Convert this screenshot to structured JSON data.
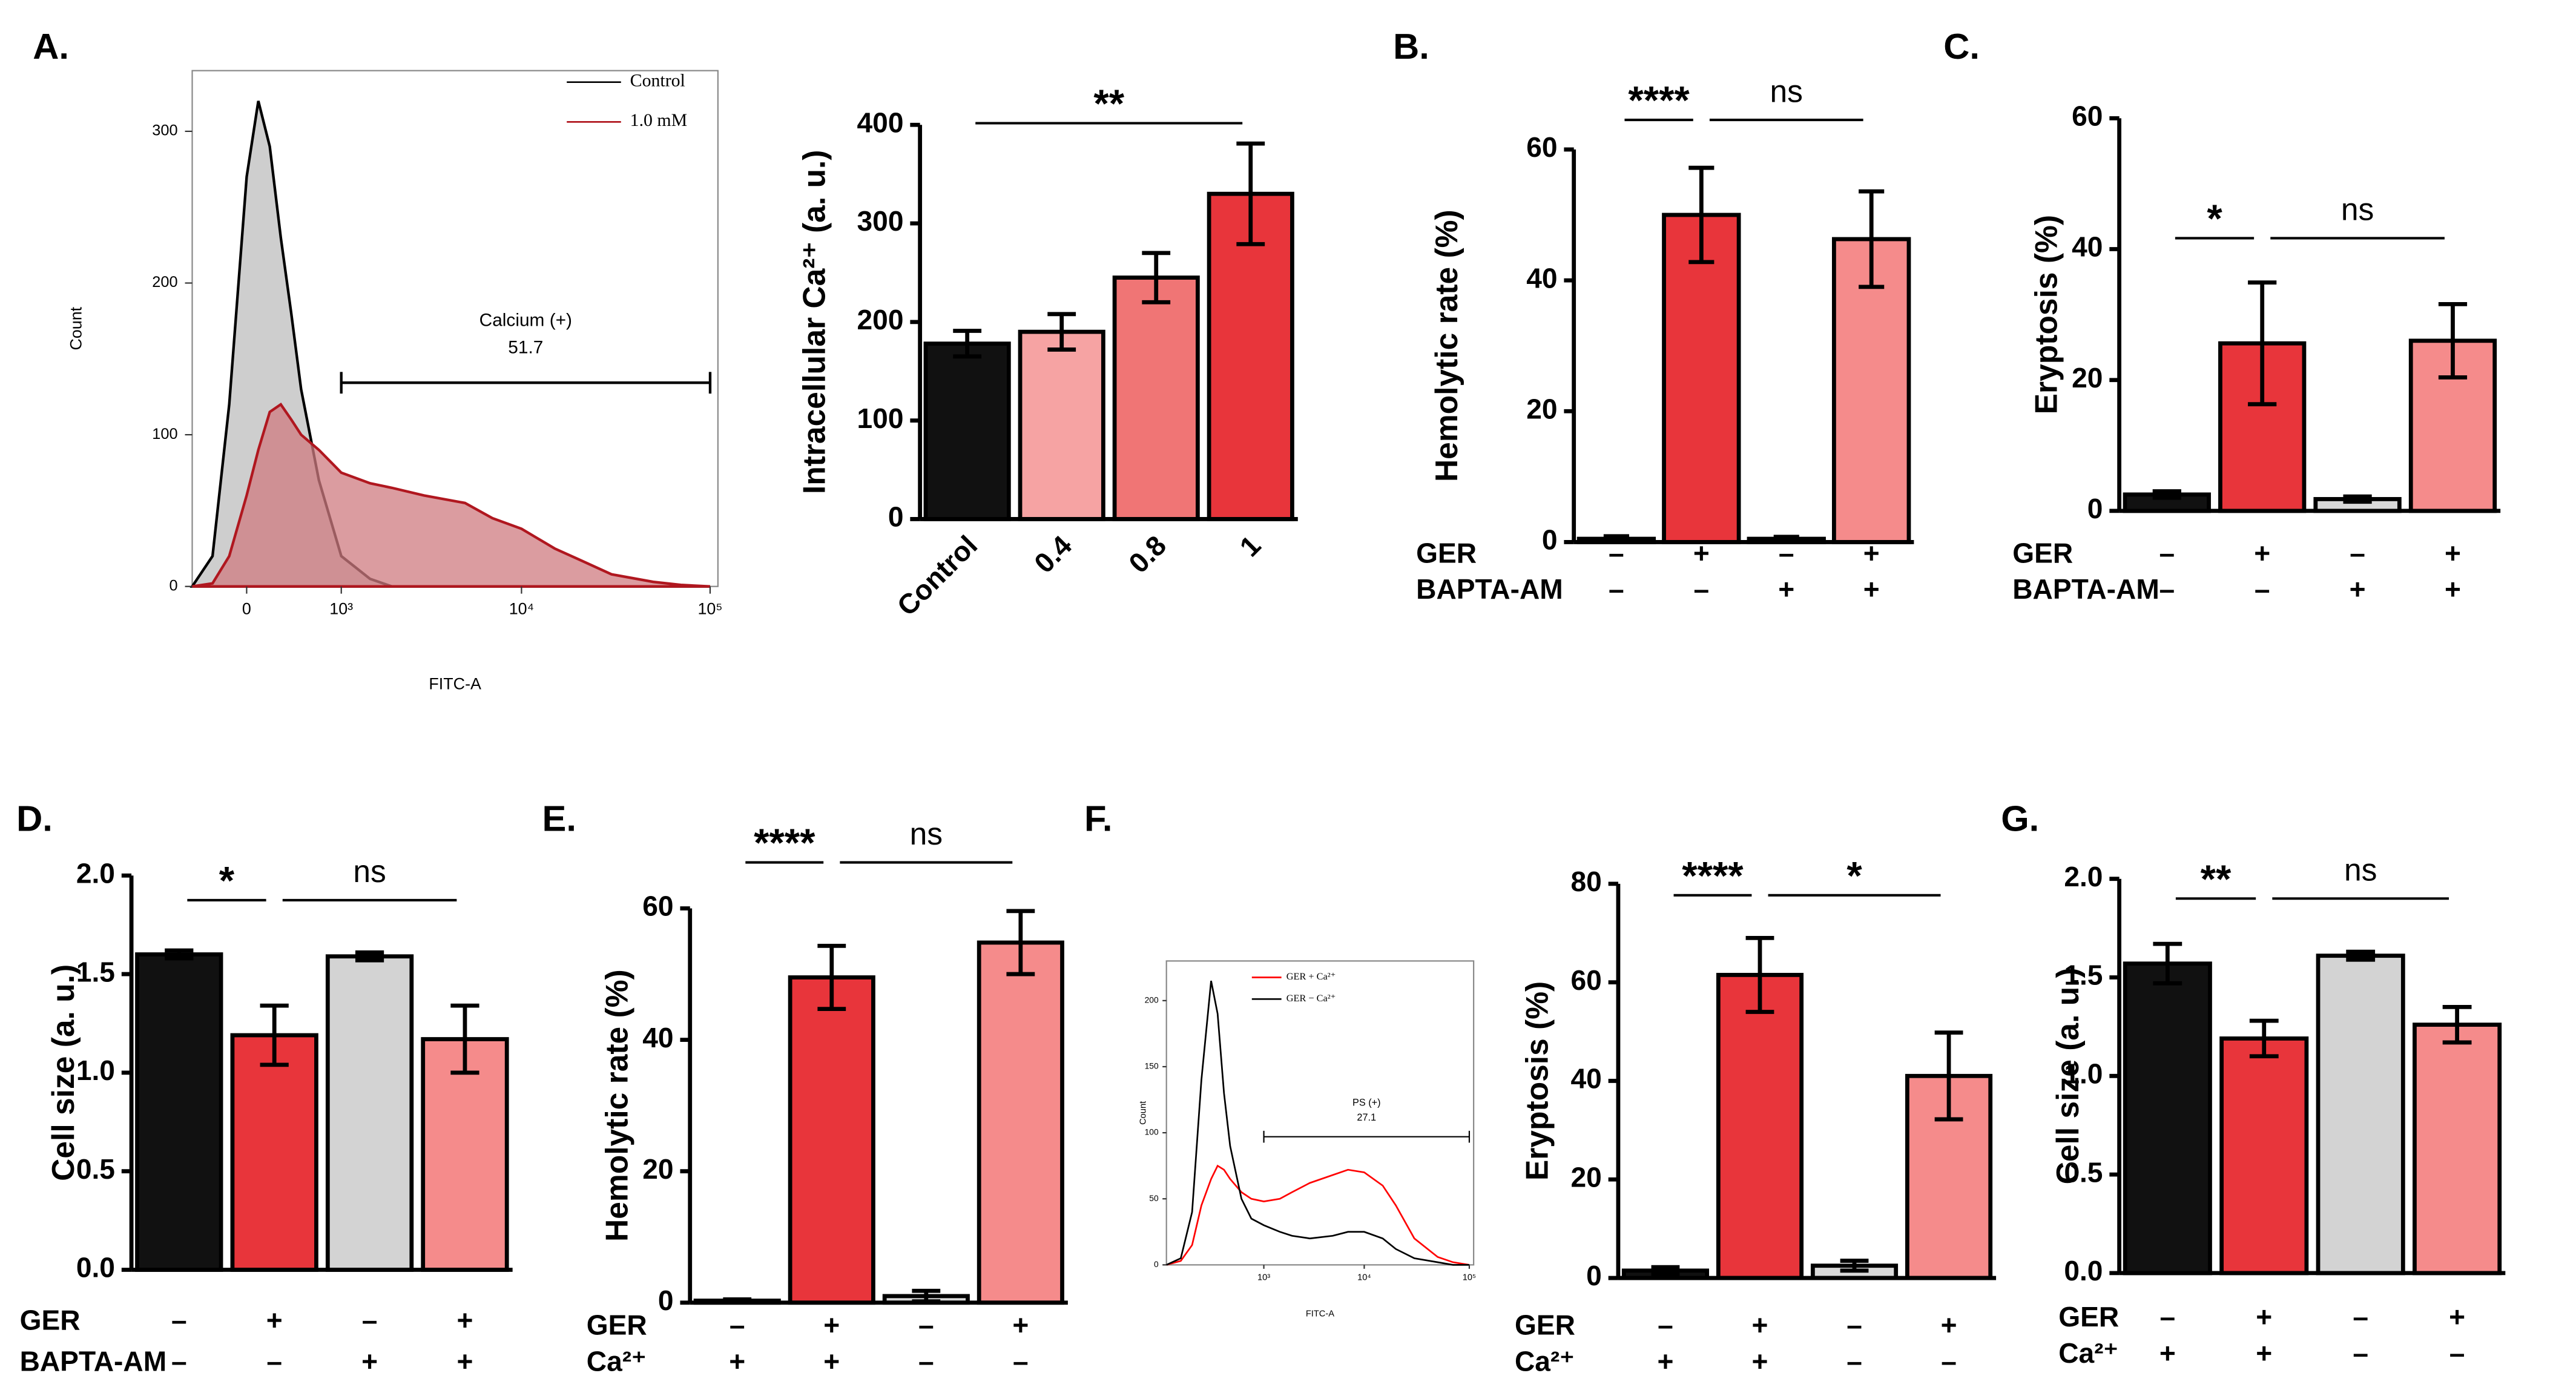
{
  "chart_data": [
    {
      "type": "flow",
      "panel": "A.",
      "xlabel": "FITC-A",
      "ylabel": "Count",
      "xscale": "logicle",
      "x": [
        -500,
        -300,
        -150,
        0,
        100,
        200,
        300,
        400,
        500,
        700,
        1000,
        1500,
        2000,
        3000,
        5000,
        7000,
        10000,
        15000,
        20000,
        30000,
        50000,
        70000,
        100000
      ],
      "series": [
        {
          "name": "Control",
          "color": "#000000",
          "fill": "#bdbdbd",
          "values": [
            0,
            20,
            120,
            270,
            320,
            290,
            230,
            180,
            130,
            70,
            20,
            5,
            0,
            0,
            0,
            0,
            0,
            0,
            0,
            0,
            0,
            0,
            0
          ]
        },
        {
          "name": "1.0 mM",
          "color": "#b0171f",
          "fill": "#cf7b80",
          "values": [
            0,
            2,
            20,
            60,
            90,
            115,
            120,
            110,
            100,
            90,
            75,
            68,
            65,
            60,
            55,
            45,
            38,
            25,
            18,
            8,
            3,
            1,
            0
          ]
        }
      ],
      "xlim": [
        -500,
        110000
      ],
      "xticks": [
        0,
        {
          "value": 1000,
          "label": "10³"
        },
        {
          "value": 10000,
          "label": "10⁴"
        },
        {
          "value": 100000,
          "label": "10⁵"
        }
      ],
      "ylim": [
        0,
        340
      ],
      "yticks": [
        0,
        100,
        200,
        300
      ],
      "gate": {
        "label": "Calcium (+)",
        "percent": 51.7,
        "range": [
          1000,
          100000
        ]
      }
    },
    {
      "type": "bar",
      "ylabel": "Intracellular Ca²⁺ (a. u.)",
      "categories": [
        "Control",
        "0.4",
        "0.8",
        "1"
      ],
      "values": [
        178,
        190,
        245,
        330
      ],
      "errors": [
        13,
        18,
        25,
        51
      ],
      "colors": [
        "#111111",
        "#f6a3a3",
        "#f07575",
        "#e8353b"
      ],
      "ylim": [
        0,
        400
      ],
      "yticks": [
        0,
        100,
        200,
        300,
        400
      ],
      "significance": [
        {
          "label": "**",
          "from": 0,
          "to": 3
        }
      ]
    },
    {
      "type": "bar",
      "panel": "B.",
      "ylabel": "Hemolytic rate (%)",
      "values": [
        0.5,
        50,
        0.5,
        46.3
      ],
      "errors": [
        0.4,
        7.2,
        0.3,
        7.3
      ],
      "colors": [
        "#111111",
        "#e8353b",
        "#d9d9d9",
        "#f58b8b"
      ],
      "ylim": [
        0,
        60
      ],
      "yticks": [
        0,
        20,
        40,
        60
      ],
      "rows": [
        {
          "name": "GER",
          "signs": [
            "–",
            "+",
            "–",
            "+"
          ]
        },
        {
          "name": "BAPTA-AM",
          "signs": [
            "–",
            "–",
            "+",
            "+"
          ]
        }
      ],
      "significance": [
        {
          "label": "****",
          "from": 0,
          "to": 1
        },
        {
          "label": "ns",
          "from": 1,
          "to": 3
        }
      ]
    },
    {
      "type": "bar",
      "panel": "C.",
      "ylabel": "Eryptosis (%)",
      "values": [
        2.5,
        25.6,
        1.8,
        26
      ],
      "errors": [
        0.5,
        9.3,
        0.4,
        5.6
      ],
      "colors": [
        "#111111",
        "#e8353b",
        "#d9d9d9",
        "#f58b8b"
      ],
      "ylim": [
        0,
        60
      ],
      "yticks": [
        0,
        20,
        40,
        60
      ],
      "rows": [
        {
          "name": "GER",
          "signs": [
            "–",
            "+",
            "–",
            "+"
          ]
        },
        {
          "name": "BAPTA-AM",
          "signs": [
            "–",
            "–",
            "+",
            "+"
          ]
        }
      ],
      "significance": [
        {
          "label": "*",
          "from": 0,
          "to": 1
        },
        {
          "label": "ns",
          "from": 1,
          "to": 3
        }
      ]
    },
    {
      "type": "bar",
      "panel": "D.",
      "ylabel": "Cell size (a. u.)",
      "values": [
        1.6,
        1.19,
        1.59,
        1.17
      ],
      "errors": [
        0.02,
        0.15,
        0.02,
        0.17
      ],
      "colors": [
        "#111111",
        "#e8353b",
        "#d3d3d3",
        "#f58b8b"
      ],
      "ylim": [
        0,
        2
      ],
      "yticks": [
        {
          "value": 0,
          "label": "0.0"
        },
        {
          "value": 0.5,
          "label": "0.5"
        },
        {
          "value": 1,
          "label": "1.0"
        },
        {
          "value": 1.5,
          "label": "1.5"
        },
        {
          "value": 2,
          "label": "2.0"
        }
      ],
      "rows": [
        {
          "name": "GER",
          "signs": [
            "–",
            "+",
            "–",
            "+"
          ]
        },
        {
          "name": "BAPTA-AM",
          "signs": [
            "–",
            "–",
            "+",
            "+"
          ]
        }
      ],
      "significance": [
        {
          "label": "*",
          "from": 0,
          "to": 1
        },
        {
          "label": "ns",
          "from": 1,
          "to": 3
        }
      ]
    },
    {
      "type": "bar",
      "panel": "E.",
      "ylabel": "Hemolytic rate (%)",
      "values": [
        0.3,
        49.5,
        1,
        54.8
      ],
      "errors": [
        0.2,
        4.8,
        0.8,
        4.8
      ],
      "colors": [
        "#111111",
        "#e8353b",
        "#d9d9d9",
        "#f58b8b"
      ],
      "ylim": [
        0,
        60
      ],
      "yticks": [
        0,
        20,
        40,
        60
      ],
      "rows": [
        {
          "name": "GER",
          "signs": [
            "–",
            "+",
            "–",
            "+"
          ]
        },
        {
          "name": "Ca²⁺",
          "signs": [
            "+",
            "+",
            "–",
            "–"
          ]
        }
      ],
      "significance": [
        {
          "label": "****",
          "from": 0,
          "to": 1
        },
        {
          "label": "ns",
          "from": 1,
          "to": 3
        }
      ]
    },
    {
      "type": "flow",
      "panel": "F.",
      "xlabel": "FITC-A",
      "ylabel": "Count",
      "xscale": "logicle",
      "x": [
        -800,
        -500,
        -300,
        -150,
        0,
        100,
        200,
        300,
        500,
        700,
        1000,
        1500,
        2000,
        3000,
        5000,
        7000,
        10000,
        15000,
        20000,
        30000,
        50000,
        70000,
        100000
      ],
      "series": [
        {
          "name": "GER + Ca²⁺",
          "color": "#ff0000",
          "values": [
            0,
            3,
            15,
            45,
            65,
            75,
            72,
            65,
            55,
            50,
            48,
            50,
            55,
            62,
            68,
            72,
            70,
            60,
            45,
            20,
            6,
            2,
            0
          ]
        },
        {
          "name": "GER − Ca²⁺",
          "color": "#000000",
          "values": [
            0,
            5,
            40,
            140,
            215,
            190,
            130,
            90,
            50,
            35,
            30,
            25,
            22,
            20,
            22,
            25,
            25,
            20,
            12,
            5,
            2,
            0,
            0
          ]
        }
      ],
      "xlim": [
        -800,
        110000
      ],
      "xticks": [
        {
          "value": 1000,
          "label": "10³"
        },
        {
          "value": 10000,
          "label": "10⁴"
        },
        {
          "value": 100000,
          "label": "10⁵"
        }
      ],
      "ylim": [
        0,
        230
      ],
      "yticks": [
        0,
        50,
        100,
        150,
        200
      ],
      "gate": {
        "label": "PS (+)",
        "percent": 27.1,
        "range": [
          1000,
          100000
        ]
      }
    },
    {
      "type": "bar",
      "ylabel": "Eryptosis (%)",
      "values": [
        1.5,
        61.5,
        2.5,
        41
      ],
      "errors": [
        0.7,
        7.5,
        1,
        8.8
      ],
      "colors": [
        "#111111",
        "#e8353b",
        "#d9d9d9",
        "#f58b8b"
      ],
      "ylim": [
        0,
        80
      ],
      "yticks": [
        0,
        20,
        40,
        60,
        80
      ],
      "rows": [
        {
          "name": "GER",
          "signs": [
            "–",
            "+",
            "–",
            "+"
          ]
        },
        {
          "name": "Ca²⁺",
          "signs": [
            "+",
            "+",
            "–",
            "–"
          ]
        }
      ],
      "significance": [
        {
          "label": "****",
          "from": 0,
          "to": 1
        },
        {
          "label": "*",
          "from": 1,
          "to": 3
        }
      ]
    },
    {
      "type": "bar",
      "panel": "G.",
      "ylabel": "Cell size (a. u.)",
      "values": [
        1.57,
        1.19,
        1.61,
        1.26
      ],
      "errors": [
        0.1,
        0.09,
        0.02,
        0.09
      ],
      "colors": [
        "#111111",
        "#e8353b",
        "#d3d3d3",
        "#f58b8b"
      ],
      "ylim": [
        0,
        2
      ],
      "yticks": [
        {
          "value": 0,
          "label": "0.0"
        },
        {
          "value": 0.5,
          "label": "0.5"
        },
        {
          "value": 1,
          "label": "1.0"
        },
        {
          "value": 1.5,
          "label": "1.5"
        },
        {
          "value": 2,
          "label": "2.0"
        }
      ],
      "rows": [
        {
          "name": "GER",
          "signs": [
            "–",
            "+",
            "–",
            "+"
          ]
        },
        {
          "name": "Ca²⁺",
          "signs": [
            "+",
            "+",
            "–",
            "–"
          ]
        }
      ],
      "significance": [
        {
          "label": "**",
          "from": 0,
          "to": 1
        },
        {
          "label": "ns",
          "from": 1,
          "to": 3
        }
      ]
    }
  ]
}
